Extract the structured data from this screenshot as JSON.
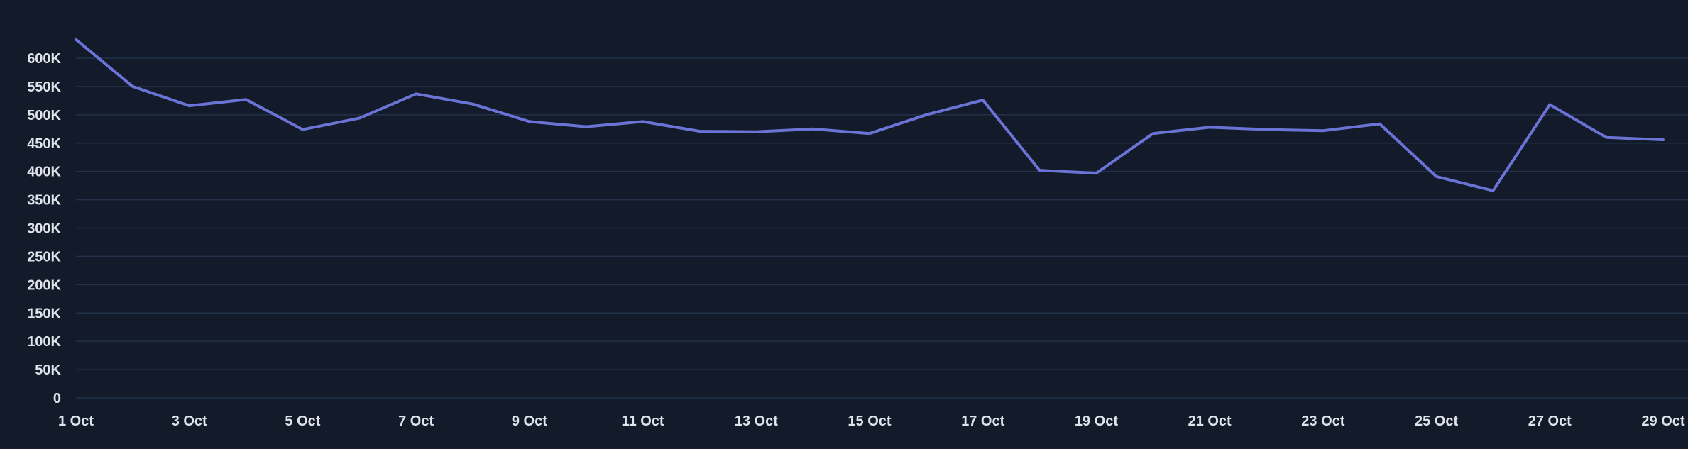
{
  "colors": {
    "background": "#131a2a",
    "grid": "#22324a",
    "line": "#6b73d6",
    "tick_text": "#dfe3ea"
  },
  "chart_data": {
    "type": "line",
    "title": "",
    "xlabel": "",
    "ylabel": "",
    "grid": true,
    "ylim": [
      0,
      600000
    ],
    "y_ticks": [
      0,
      50000,
      100000,
      150000,
      200000,
      250000,
      300000,
      350000,
      400000,
      450000,
      500000,
      550000,
      600000
    ],
    "y_tick_labels": [
      "0",
      "50K",
      "100K",
      "150K",
      "200K",
      "250K",
      "300K",
      "350K",
      "400K",
      "450K",
      "500K",
      "550K",
      "600K"
    ],
    "x_tick_labels": [
      "1 Oct",
      "3 Oct",
      "5 Oct",
      "7 Oct",
      "9 Oct",
      "11 Oct",
      "13 Oct",
      "15 Oct",
      "17 Oct",
      "19 Oct",
      "21 Oct",
      "23 Oct",
      "25 Oct",
      "27 Oct",
      "29 Oct"
    ],
    "x": [
      "1 Oct",
      "2 Oct",
      "3 Oct",
      "4 Oct",
      "5 Oct",
      "6 Oct",
      "7 Oct",
      "8 Oct",
      "9 Oct",
      "10 Oct",
      "11 Oct",
      "12 Oct",
      "13 Oct",
      "14 Oct",
      "15 Oct",
      "16 Oct",
      "17 Oct",
      "18 Oct",
      "19 Oct",
      "20 Oct",
      "21 Oct",
      "22 Oct",
      "23 Oct",
      "24 Oct",
      "25 Oct",
      "26 Oct",
      "27 Oct",
      "28 Oct",
      "29 Oct"
    ],
    "series": [
      {
        "values": [
          633000,
          550000,
          516000,
          527000,
          474000,
          494000,
          537000,
          519000,
          488000,
          479000,
          488000,
          471000,
          470000,
          475000,
          467000,
          500000,
          526000,
          402000,
          397000,
          467000,
          478000,
          474000,
          472000,
          484000,
          391000,
          366000,
          518000,
          460000,
          456000
        ]
      }
    ]
  }
}
